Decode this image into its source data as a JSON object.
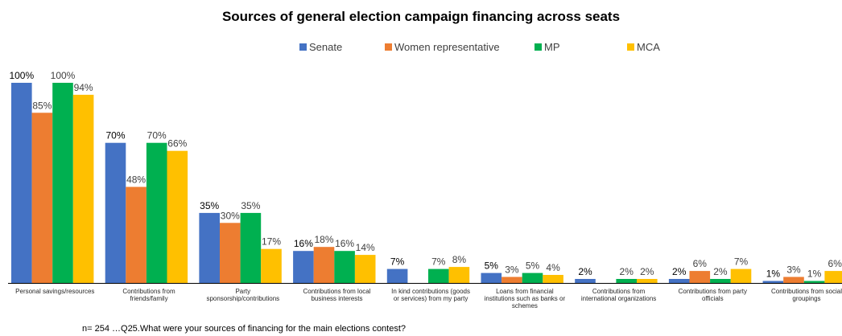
{
  "chart_data": {
    "type": "bar",
    "title": "Sources of general election campaign financing across seats",
    "xlabel": "",
    "ylabel": "",
    "ylim": [
      0,
      100
    ],
    "grid": false,
    "legend_position": "top",
    "categories": [
      [
        "Personal savings/resources"
      ],
      [
        "Contributions from",
        "friends/family"
      ],
      [
        "Party",
        "sponsorship/contributions"
      ],
      [
        "Contributions from local",
        "business interests"
      ],
      [
        "In kind contributions (goods",
        "or services) from my party"
      ],
      [
        "Loans from financial",
        "institutions such as banks or",
        "schemes"
      ],
      [
        "Contributions from",
        "international organizations"
      ],
      [
        "Contributions from party",
        "officials"
      ],
      [
        "Contributions from social",
        "groupings"
      ]
    ],
    "series": [
      {
        "name": "Senate",
        "color": "#4472C4",
        "values": [
          100,
          70,
          35,
          16,
          7,
          5,
          2,
          2,
          1
        ]
      },
      {
        "name": "Women representative",
        "color": "#ED7D31",
        "values": [
          85,
          48,
          30,
          18,
          null,
          3,
          null,
          6,
          3
        ]
      },
      {
        "name": "MP",
        "color": "#00B050",
        "values": [
          100,
          70,
          35,
          16,
          7,
          5,
          2,
          2,
          1
        ]
      },
      {
        "name": "MCA",
        "color": "#FFC000",
        "values": [
          94,
          66,
          17,
          14,
          8,
          4,
          2,
          7,
          6
        ]
      }
    ]
  },
  "footnote": "n= 254 …Q25.What were your sources of financing for the main elections contest?"
}
